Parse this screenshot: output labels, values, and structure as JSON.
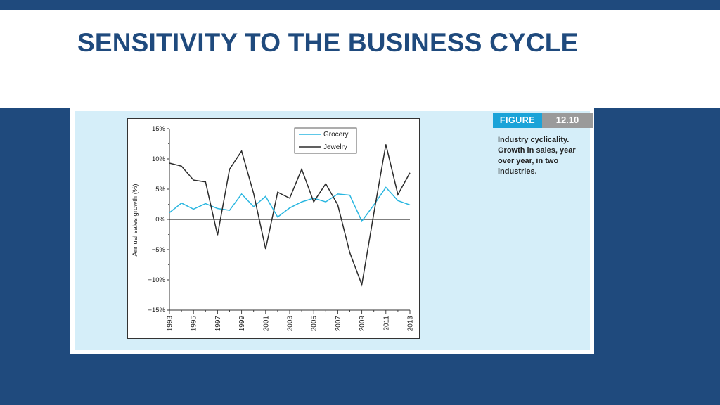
{
  "slide": {
    "title": "SENSITIVITY TO THE BUSINESS CYCLE"
  },
  "figure": {
    "label_word": "FIGURE",
    "label_number": "12.10",
    "caption": "Industry cyclicality. Growth in sales, year over year, in two industries."
  },
  "colors": {
    "background": "#1f4a7d",
    "title": "#1f4a7d",
    "figure_bg": "#d5eef9",
    "grocery": "#29b6e0",
    "jewelry": "#2b2b2b"
  },
  "chart_data": {
    "type": "line",
    "title": "",
    "xlabel": "",
    "ylabel": "Annual sales growth (%)",
    "ylim": [
      -15,
      15
    ],
    "xlim": [
      1993,
      2013
    ],
    "yticks": [
      15,
      10,
      5,
      0,
      -5,
      -10,
      -15
    ],
    "ytick_labels": [
      "15%",
      "10%",
      "5%",
      "0%",
      "−5%",
      "−10%",
      "−15%"
    ],
    "xticks": [
      "1993",
      "1995",
      "1997",
      "1999",
      "2001",
      "2003",
      "2005",
      "2007",
      "2009",
      "2011",
      "2013"
    ],
    "grid": false,
    "legend": "top-right",
    "x": [
      1993,
      1994,
      1995,
      1996,
      1997,
      1998,
      1999,
      2000,
      2001,
      2002,
      2003,
      2004,
      2005,
      2006,
      2007,
      2008,
      2009,
      2010,
      2011,
      2012,
      2013
    ],
    "series": [
      {
        "name": "Grocery",
        "values": [
          1.1,
          2.7,
          1.7,
          2.6,
          1.8,
          1.5,
          4.2,
          2.1,
          3.8,
          0.4,
          1.9,
          2.9,
          3.5,
          2.9,
          4.2,
          4.0,
          -0.3,
          2.4,
          5.3,
          3.1,
          2.4
        ]
      },
      {
        "name": "Jewelry",
        "values": [
          9.3,
          8.8,
          6.5,
          6.2,
          -2.6,
          8.3,
          11.3,
          4.3,
          -4.9,
          4.5,
          3.5,
          8.3,
          2.9,
          5.9,
          2.4,
          -5.5,
          -10.8,
          1.0,
          12.4,
          4.1,
          7.7
        ]
      }
    ]
  }
}
